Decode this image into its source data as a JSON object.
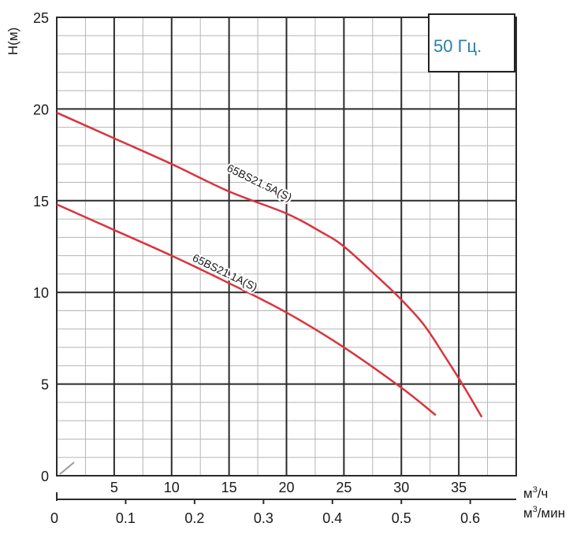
{
  "chart_data": {
    "type": "line",
    "frequency_label": "50 Гц.",
    "ylabel": "H(м)",
    "xlabel_primary_unit": "м",
    "xlabel_primary_unit_exp": "3",
    "xlabel_primary_unit_suffix": "/ч",
    "xlabel_secondary_unit": "м",
    "xlabel_secondary_unit_exp": "3",
    "xlabel_secondary_unit_suffix": "/мин",
    "xlim": [
      0,
      40
    ],
    "ylim": [
      0,
      25
    ],
    "x_ticks": [
      5,
      10,
      15,
      20,
      25,
      30,
      35
    ],
    "x_ticks_labels": [
      "5",
      "10",
      "15",
      "20",
      "25",
      "30",
      "35"
    ],
    "x2_ticks": [
      0,
      0.1,
      0.2,
      0.3,
      0.4,
      0.5,
      0.6
    ],
    "x2_ticks_labels": [
      "0",
      "0.1",
      "0.2",
      "0.3",
      "0.4",
      "0.5",
      "0.6"
    ],
    "y_ticks": [
      0,
      5,
      10,
      15,
      20,
      25
    ],
    "y_ticks_labels": [
      "0",
      "5",
      "10",
      "15",
      "20",
      "25"
    ],
    "grid": true,
    "series": [
      {
        "name": "65BS21.5A(S)",
        "color": "#d9343e",
        "x": [
          0,
          5,
          10,
          15,
          20,
          23,
          25,
          28,
          30,
          32,
          34,
          35.5,
          37
        ],
        "y": [
          19.8,
          18.4,
          17.0,
          15.5,
          14.3,
          13.3,
          12.5,
          10.8,
          9.6,
          8.2,
          6.3,
          4.8,
          3.2
        ],
        "label_at": {
          "x": 17.5,
          "y": 15.8,
          "angle": -26
        }
      },
      {
        "name": "65BS21.1A(S)",
        "color": "#d9343e",
        "x": [
          0,
          5,
          10,
          15,
          20,
          25,
          30,
          33
        ],
        "y": [
          14.8,
          13.4,
          12.0,
          10.5,
          8.9,
          7.0,
          4.8,
          3.3
        ],
        "label_at": {
          "x": 14.5,
          "y": 10.9,
          "angle": -26
        }
      }
    ]
  }
}
